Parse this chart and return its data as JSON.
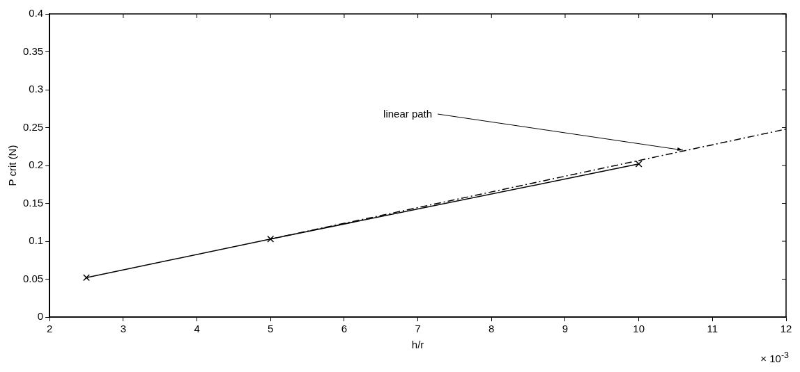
{
  "chart_data": {
    "type": "line",
    "xlabel": "h/r",
    "ylabel": "P crit (N)",
    "xlim": [
      2,
      12
    ],
    "xticks": [
      2,
      3,
      4,
      5,
      6,
      7,
      8,
      9,
      10,
      11,
      12
    ],
    "ylim": [
      0,
      0.4
    ],
    "yticks": [
      0,
      0.05,
      0.1,
      0.15,
      0.2,
      0.25,
      0.3,
      0.35,
      0.4
    ],
    "grid": false,
    "legend": false,
    "series": [
      {
        "color": "#000000",
        "x": [
          2.5,
          5,
          10
        ],
        "values": [
          0.052,
          0.103,
          0.202
        ],
        "marker": "cross",
        "line_style": "solid"
      },
      {
        "color": "#000000",
        "x": [
          5,
          12
        ],
        "values": [
          0.103,
          0.248
        ],
        "marker": "none",
        "line_style": "dashed"
      }
    ],
    "annotations": [
      {
        "text": "linear path",
        "x": 10.6,
        "y": 0.22
      },
      "× 10$^{-3}$"
    ]
  }
}
